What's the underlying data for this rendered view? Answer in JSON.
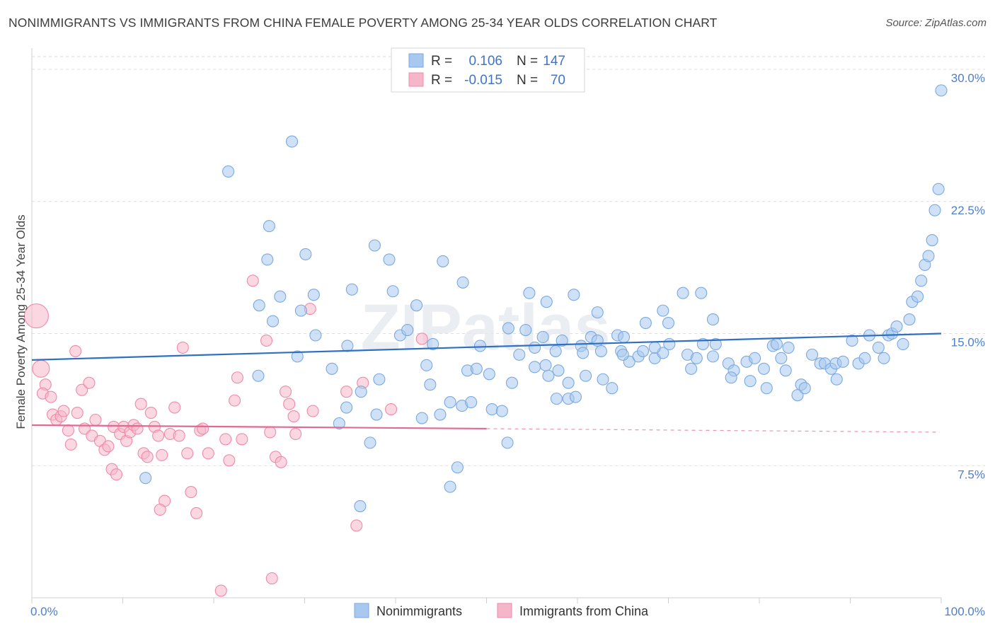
{
  "title": "NONIMMIGRANTS VS IMMIGRANTS FROM CHINA FEMALE POVERTY AMONG 25-34 YEAR OLDS CORRELATION CHART",
  "source": "Source: ZipAtlas.com",
  "watermark": "ZIPatlas",
  "colors": {
    "blue": "#7aa9e0",
    "blue_fill": "#a8c8ef",
    "blue_line": "#2f6fc4",
    "pink": "#ef8aa8",
    "pink_fill": "#f6b6c9",
    "pink_line": "#e06a92",
    "value_text": "#3f74c9",
    "grid": "#dedede",
    "axis_text": "#4d7fcc"
  },
  "legend": {
    "rows": [
      {
        "r_label": "R =",
        "r_value": "0.106",
        "n_label": "N =",
        "n_value": "147",
        "series": "blue"
      },
      {
        "r_label": "R =",
        "r_value": "-0.015",
        "n_label": "N =",
        "n_value": "70",
        "series": "pink"
      }
    ]
  },
  "chart_data": {
    "type": "scatter",
    "title": "NONIMMIGRANTS VS IMMIGRANTS FROM CHINA FEMALE POVERTY AMONG 25-34 YEAR OLDS CORRELATION CHART",
    "xlabel": "",
    "ylabel": "Female Poverty Among 25-34 Year Olds",
    "xlim": [
      0,
      100
    ],
    "ylim": [
      0,
      30.0
    ],
    "y_ticks": [
      7.5,
      15.0,
      22.5,
      30.0
    ],
    "y_tick_labels": [
      "7.5%",
      "15.0%",
      "22.5%",
      "30.0%"
    ],
    "x_tick_labels": [
      "0.0%",
      "100.0%"
    ],
    "grid": true,
    "legend_position": "bottom-center",
    "series": [
      {
        "name": "Nonimmigrants",
        "color": "blue",
        "trend": {
          "x": [
            0,
            100
          ],
          "y": [
            13.5,
            15.0
          ],
          "dashed_from": null
        },
        "points": [
          [
            21.6,
            24.2
          ],
          [
            28.6,
            25.9
          ],
          [
            26.1,
            21.1
          ],
          [
            25.9,
            19.2
          ],
          [
            30.1,
            19.5
          ],
          [
            37.7,
            20.0
          ],
          [
            39.3,
            19.2
          ],
          [
            45.2,
            19.1
          ],
          [
            47.4,
            17.9
          ],
          [
            25.0,
            16.6
          ],
          [
            27.3,
            17.1
          ],
          [
            31.0,
            17.2
          ],
          [
            35.2,
            17.5
          ],
          [
            39.7,
            17.4
          ],
          [
            42.3,
            16.6
          ],
          [
            26.5,
            15.7
          ],
          [
            29.6,
            16.3
          ],
          [
            31.2,
            14.9
          ],
          [
            34.7,
            14.3
          ],
          [
            40.5,
            14.9
          ],
          [
            41.3,
            15.2
          ],
          [
            44.1,
            14.4
          ],
          [
            49.3,
            14.3
          ],
          [
            24.9,
            12.6
          ],
          [
            29.2,
            13.7
          ],
          [
            33.0,
            13.0
          ],
          [
            36.2,
            11.7
          ],
          [
            38.2,
            12.4
          ],
          [
            43.4,
            13.2
          ],
          [
            43.8,
            12.1
          ],
          [
            34.6,
            10.8
          ],
          [
            33.8,
            9.9
          ],
          [
            37.9,
            10.4
          ],
          [
            44.9,
            10.4
          ],
          [
            46.0,
            11.1
          ],
          [
            47.3,
            10.9
          ],
          [
            48.3,
            11.1
          ],
          [
            37.2,
            8.8
          ],
          [
            52.3,
            8.8
          ],
          [
            50.6,
            10.7
          ],
          [
            47.9,
            12.9
          ],
          [
            48.9,
            13.0
          ],
          [
            50.3,
            12.7
          ],
          [
            52.8,
            12.2
          ],
          [
            53.6,
            13.8
          ],
          [
            52.4,
            15.3
          ],
          [
            55.3,
            14.2
          ],
          [
            56.2,
            14.8
          ],
          [
            57.6,
            14.0
          ],
          [
            58.3,
            14.6
          ],
          [
            56.8,
            12.6
          ],
          [
            57.9,
            12.9
          ],
          [
            59.0,
            12.2
          ],
          [
            60.4,
            14.3
          ],
          [
            60.6,
            13.9
          ],
          [
            61.5,
            14.8
          ],
          [
            62.2,
            14.6
          ],
          [
            62.6,
            14.0
          ],
          [
            64.4,
            14.9
          ],
          [
            65.1,
            14.8
          ],
          [
            64.8,
            14.0
          ],
          [
            60.9,
            12.6
          ],
          [
            62.8,
            12.4
          ],
          [
            63.8,
            11.9
          ],
          [
            59.0,
            11.3
          ],
          [
            59.8,
            11.4
          ],
          [
            65.7,
            13.4
          ],
          [
            66.7,
            13.7
          ],
          [
            67.2,
            14.0
          ],
          [
            68.5,
            13.6
          ],
          [
            69.4,
            13.9
          ],
          [
            70.1,
            14.4
          ],
          [
            72.1,
            13.8
          ],
          [
            73.1,
            13.6
          ],
          [
            72.5,
            13.0
          ],
          [
            73.8,
            14.4
          ],
          [
            75.2,
            14.4
          ],
          [
            74.9,
            13.7
          ],
          [
            76.6,
            13.3
          ],
          [
            77.2,
            12.9
          ],
          [
            76.9,
            12.5
          ],
          [
            78.6,
            13.4
          ],
          [
            79.0,
            12.3
          ],
          [
            79.5,
            13.6
          ],
          [
            80.5,
            13.0
          ],
          [
            81.5,
            14.3
          ],
          [
            81.9,
            14.4
          ],
          [
            82.4,
            13.6
          ],
          [
            83.2,
            14.2
          ],
          [
            82.9,
            12.9
          ],
          [
            80.8,
            11.9
          ],
          [
            84.6,
            12.1
          ],
          [
            84.2,
            11.5
          ],
          [
            85.0,
            11.9
          ],
          [
            85.8,
            13.8
          ],
          [
            86.7,
            13.3
          ],
          [
            87.2,
            13.3
          ],
          [
            87.9,
            13.0
          ],
          [
            88.4,
            13.3
          ],
          [
            89.2,
            13.4
          ],
          [
            88.5,
            12.4
          ],
          [
            90.2,
            14.6
          ],
          [
            90.9,
            13.3
          ],
          [
            91.6,
            13.6
          ],
          [
            92.1,
            14.9
          ],
          [
            93.1,
            14.2
          ],
          [
            93.7,
            13.6
          ],
          [
            94.2,
            14.9
          ],
          [
            94.6,
            15.0
          ],
          [
            95.1,
            15.4
          ],
          [
            95.8,
            14.4
          ],
          [
            96.5,
            15.8
          ],
          [
            96.8,
            16.8
          ],
          [
            97.4,
            17.1
          ],
          [
            97.8,
            18.0
          ],
          [
            98.2,
            18.9
          ],
          [
            98.6,
            19.4
          ],
          [
            99.0,
            20.3
          ],
          [
            99.3,
            22.0
          ],
          [
            99.7,
            23.2
          ],
          [
            100.0,
            28.8
          ],
          [
            54.7,
            17.3
          ],
          [
            56.6,
            16.8
          ],
          [
            59.6,
            17.2
          ],
          [
            62.2,
            16.2
          ],
          [
            69.4,
            16.3
          ],
          [
            71.6,
            17.3
          ],
          [
            74.9,
            15.8
          ],
          [
            67.5,
            15.6
          ],
          [
            73.6,
            17.3
          ],
          [
            54.3,
            15.2
          ],
          [
            55.3,
            13.1
          ],
          [
            42.9,
            10.2
          ],
          [
            51.7,
            10.6
          ],
          [
            57.7,
            11.3
          ],
          [
            56.5,
            13.2
          ],
          [
            65.0,
            13.8
          ],
          [
            68.5,
            14.2
          ],
          [
            70.0,
            15.6
          ],
          [
            46.8,
            7.4
          ],
          [
            46.0,
            6.3
          ],
          [
            12.5,
            6.8
          ],
          [
            36.1,
            5.2
          ]
        ]
      },
      {
        "name": "Immigrants from China",
        "color": "pink",
        "trend": {
          "x": [
            0,
            100
          ],
          "y": [
            9.8,
            9.4
          ],
          "dashed_from": 50
        },
        "points": [
          [
            0.5,
            16.0
          ],
          [
            1.0,
            13.0
          ],
          [
            1.5,
            12.1
          ],
          [
            1.2,
            11.6
          ],
          [
            2.1,
            11.4
          ],
          [
            2.3,
            10.4
          ],
          [
            2.7,
            10.1
          ],
          [
            3.2,
            10.3
          ],
          [
            3.5,
            10.6
          ],
          [
            4.0,
            9.5
          ],
          [
            4.3,
            8.7
          ],
          [
            4.8,
            14.0
          ],
          [
            5.0,
            10.5
          ],
          [
            5.5,
            11.8
          ],
          [
            5.8,
            9.6
          ],
          [
            6.3,
            12.2
          ],
          [
            6.6,
            9.2
          ],
          [
            7.0,
            10.1
          ],
          [
            7.5,
            8.9
          ],
          [
            8.0,
            8.4
          ],
          [
            8.4,
            8.6
          ],
          [
            8.8,
            7.3
          ],
          [
            9.0,
            9.7
          ],
          [
            9.3,
            7.0
          ],
          [
            9.7,
            9.3
          ],
          [
            10.1,
            9.7
          ],
          [
            10.4,
            8.9
          ],
          [
            10.8,
            9.4
          ],
          [
            11.2,
            9.8
          ],
          [
            11.6,
            9.6
          ],
          [
            12.0,
            11.0
          ],
          [
            12.3,
            8.2
          ],
          [
            12.7,
            8.0
          ],
          [
            13.1,
            10.5
          ],
          [
            13.5,
            9.7
          ],
          [
            13.9,
            9.2
          ],
          [
            14.3,
            8.1
          ],
          [
            14.6,
            5.5
          ],
          [
            14.1,
            5.0
          ],
          [
            15.2,
            9.3
          ],
          [
            15.7,
            10.8
          ],
          [
            16.2,
            9.2
          ],
          [
            16.6,
            14.2
          ],
          [
            17.1,
            8.2
          ],
          [
            17.5,
            6.0
          ],
          [
            18.1,
            4.8
          ],
          [
            18.5,
            9.5
          ],
          [
            18.8,
            9.6
          ],
          [
            19.4,
            8.2
          ],
          [
            20.8,
            0.4
          ],
          [
            21.3,
            9.0
          ],
          [
            21.7,
            7.8
          ],
          [
            22.3,
            11.2
          ],
          [
            22.6,
            12.5
          ],
          [
            23.1,
            9.0
          ],
          [
            24.3,
            18.0
          ],
          [
            25.8,
            14.6
          ],
          [
            26.2,
            9.4
          ],
          [
            26.8,
            8.0
          ],
          [
            27.4,
            7.7
          ],
          [
            27.9,
            11.7
          ],
          [
            28.3,
            11.0
          ],
          [
            28.8,
            10.3
          ],
          [
            29.0,
            9.3
          ],
          [
            30.6,
            16.4
          ],
          [
            30.9,
            10.6
          ],
          [
            34.6,
            11.7
          ],
          [
            35.7,
            4.1
          ],
          [
            36.4,
            12.2
          ],
          [
            39.5,
            10.7
          ],
          [
            42.9,
            14.7
          ],
          [
            26.4,
            1.1
          ]
        ]
      }
    ]
  }
}
